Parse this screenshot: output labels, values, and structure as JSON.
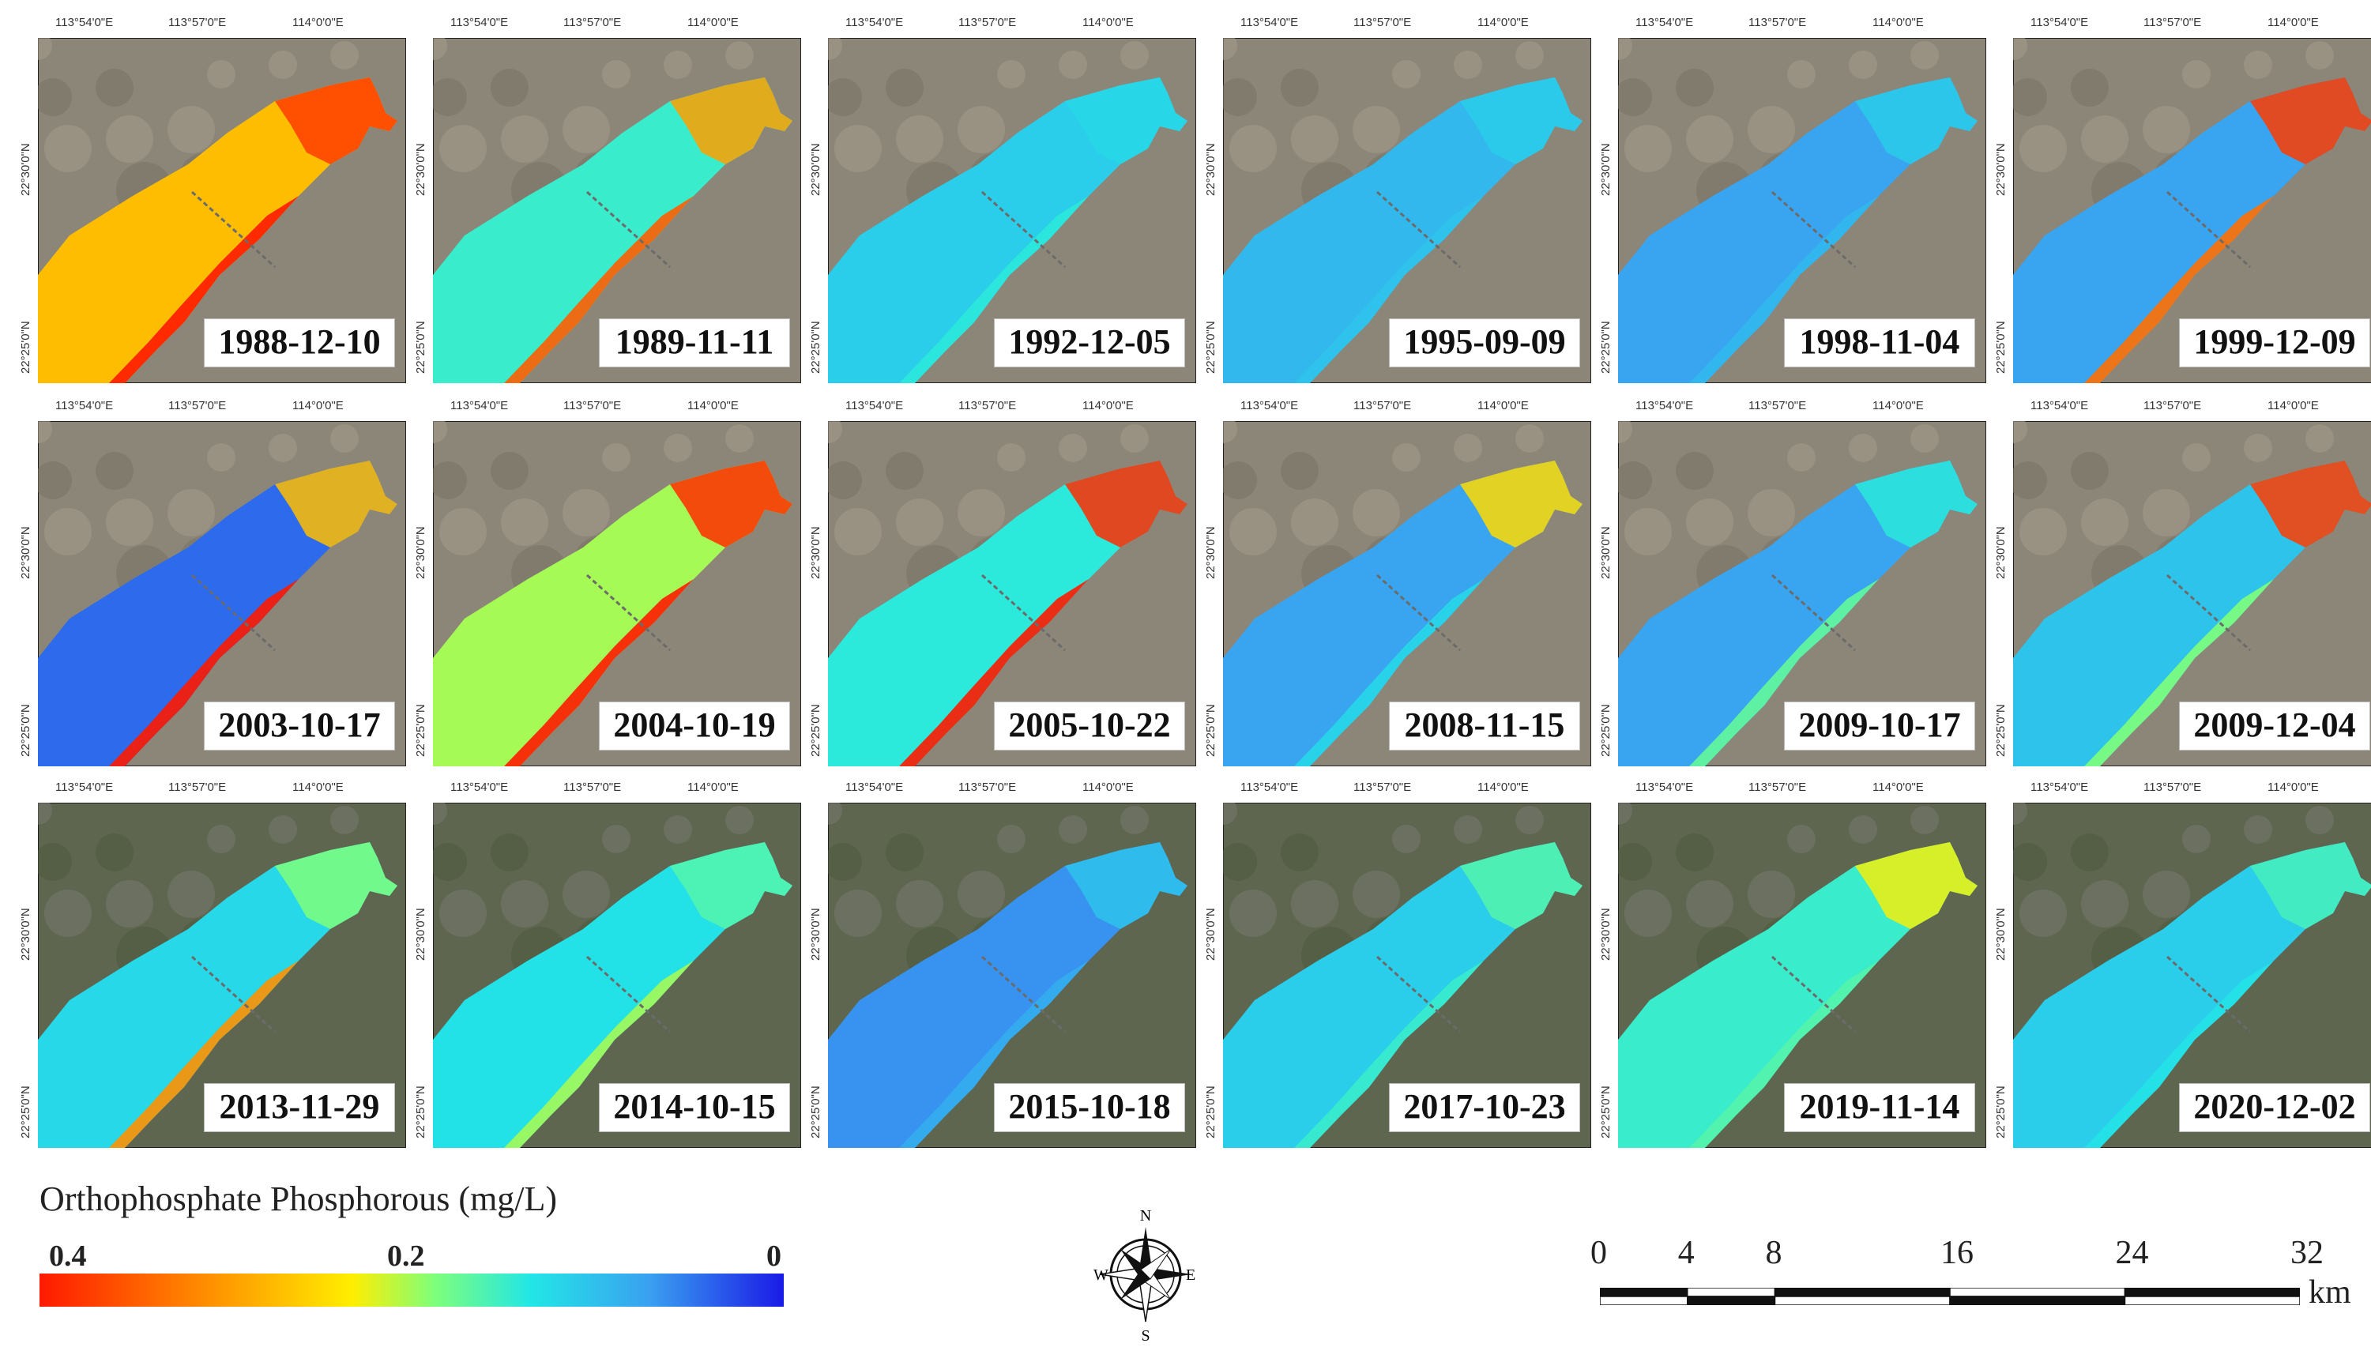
{
  "panels": [
    {
      "date": "1988-12-10",
      "level": 0.3,
      "front": 0.38,
      "bank": 0.4,
      "lon": [
        "113°54'0\"E",
        "113°57'0\"E",
        "114°0'0\"E"
      ],
      "lat": [
        "22°30'0\"N",
        "22°25'0\"N"
      ]
    },
    {
      "date": "1989-11-11",
      "level": 0.15,
      "front": 0.32,
      "bank": 0.36,
      "lon": [
        "113°54'0\"E",
        "113°57'0\"E",
        "114°0'0\"E"
      ],
      "lat": [
        "22°30'0\"N",
        "22°25'0\"N"
      ]
    },
    {
      "date": "1992-12-05",
      "level": 0.11,
      "front": 0.12,
      "bank": 0.14,
      "lon": [
        "113°54'0\"E",
        "113°57'0\"E",
        "114°0'0\"E"
      ],
      "lat": [
        "22°30'0\"N",
        "22°25'0\"N"
      ]
    },
    {
      "date": "1995-09-09",
      "level": 0.09,
      "front": 0.11,
      "bank": 0.1,
      "lon": [
        "113°54'0\"E",
        "113°57'0\"E",
        "114°0'0\"E"
      ],
      "lat": [
        "22°30'0\"N",
        "22°25'0\"N"
      ]
    },
    {
      "date": "1998-11-04",
      "level": 0.07,
      "front": 0.11,
      "bank": 0.09,
      "lon": [
        "113°54'0\"E",
        "113°57'0\"E",
        "114°0'0\"E"
      ],
      "lat": [
        "22°30'0\"N",
        "22°25'0\"N"
      ]
    },
    {
      "date": "1999-12-09",
      "level": 0.07,
      "front": 0.38,
      "bank": 0.35,
      "lon": [
        "113°54'0\"E",
        "113°57'0\"E",
        "114°0'0\"E"
      ],
      "lat": [
        "22°30'0\"N",
        "22°25'0\"N"
      ]
    },
    {
      "date": "2003-10-17",
      "level": 0.04,
      "front": 0.3,
      "bank": 0.4,
      "lon": [
        "113°54'0\"E",
        "113°57'0\"E",
        "114°0'0\"E"
      ],
      "lat": [
        "22°30'0\"N",
        "22°25'0\"N"
      ]
    },
    {
      "date": "2004-10-19",
      "level": 0.22,
      "front": 0.39,
      "bank": 0.4,
      "lon": [
        "113°54'0\"E",
        "113°57'0\"E",
        "114°0'0\"E"
      ],
      "lat": [
        "22°30'0\"N",
        "22°25'0\"N"
      ]
    },
    {
      "date": "2005-10-22",
      "level": 0.14,
      "front": 0.39,
      "bank": 0.4,
      "lon": [
        "113°54'0\"E",
        "113°57'0\"E",
        "114°0'0\"E"
      ],
      "lat": [
        "22°30'0\"N",
        "22°25'0\"N"
      ]
    },
    {
      "date": "2008-11-15",
      "level": 0.07,
      "front": 0.28,
      "bank": 0.12,
      "lon": [
        "113°54'0\"E",
        "113°57'0\"E",
        "114°0'0\"E"
      ],
      "lat": [
        "22°30'0\"N",
        "22°25'0\"N"
      ]
    },
    {
      "date": "2009-10-17",
      "level": 0.07,
      "front": 0.14,
      "bank": 0.18,
      "lon": [
        "113°54'0\"E",
        "113°57'0\"E",
        "114°0'0\"E"
      ],
      "lat": [
        "22°30'0\"N",
        "22°25'0\"N"
      ]
    },
    {
      "date": "2009-12-04",
      "level": 0.1,
      "front": 0.38,
      "bank": 0.2,
      "lon": [
        "113°54'0\"E",
        "113°57'0\"E",
        "114°0'0\"E"
      ],
      "lat": [
        "22°30'0\"N",
        "22°25'0\"N"
      ]
    },
    {
      "date": "2013-11-29",
      "level": 0.12,
      "front": 0.2,
      "bank": 0.33,
      "lon": [
        "113°54'0\"E",
        "113°57'0\"E",
        "114°0'0\"E"
      ],
      "lat": [
        "22°30'0\"N",
        "22°25'0\"N"
      ]
    },
    {
      "date": "2014-10-15",
      "level": 0.13,
      "front": 0.17,
      "bank": 0.22,
      "lon": [
        "113°54'0\"E",
        "113°57'0\"E",
        "114°0'0\"E"
      ],
      "lat": [
        "22°30'0\"N",
        "22°25'0\"N"
      ]
    },
    {
      "date": "2015-10-18",
      "level": 0.06,
      "front": 0.1,
      "bank": 0.08,
      "lon": [
        "113°54'0\"E",
        "113°57'0\"E",
        "114°0'0\"E"
      ],
      "lat": [
        "22°30'0\"N",
        "22°25'0\"N"
      ]
    },
    {
      "date": "2017-10-23",
      "level": 0.11,
      "front": 0.17,
      "bank": 0.15,
      "lon": [
        "113°54'0\"E",
        "113°57'0\"E",
        "114°0'0\"E"
      ],
      "lat": [
        "22°30'0\"N",
        "22°25'0\"N"
      ]
    },
    {
      "date": "2019-11-14",
      "level": 0.15,
      "front": 0.26,
      "bank": 0.17,
      "lon": [
        "113°54'0\"E",
        "113°57'0\"E",
        "114°0'0\"E"
      ],
      "lat": [
        "22°30'0\"N",
        "22°25'0\"N"
      ]
    },
    {
      "date": "2020-12-02",
      "level": 0.11,
      "front": 0.16,
      "bank": 0.13,
      "lon": [
        "113°54'0\"E",
        "113°57'0\"E",
        "114°0'0\"E"
      ],
      "lat": [
        "22°30'0\"N",
        "22°25'0\"N"
      ]
    }
  ],
  "legend": {
    "title": "Orthophosphate Phosphorous (mg/L)",
    "ticks": [
      "0.4",
      "0.2",
      "0"
    ],
    "max": 0.4,
    "min": 0,
    "colors": [
      "#ff1a00",
      "#ff8c00",
      "#ffee00",
      "#7fff7a",
      "#22e6e6",
      "#3aa0f0",
      "#1a1ae6"
    ]
  },
  "compass": {
    "n": "N",
    "s": "S",
    "e": "E",
    "w": "W"
  },
  "scale": {
    "ticks": [
      "0",
      "4",
      "8",
      "16",
      "24",
      "32"
    ],
    "values": [
      0,
      4,
      8,
      16,
      24,
      32
    ],
    "unit": "km"
  }
}
